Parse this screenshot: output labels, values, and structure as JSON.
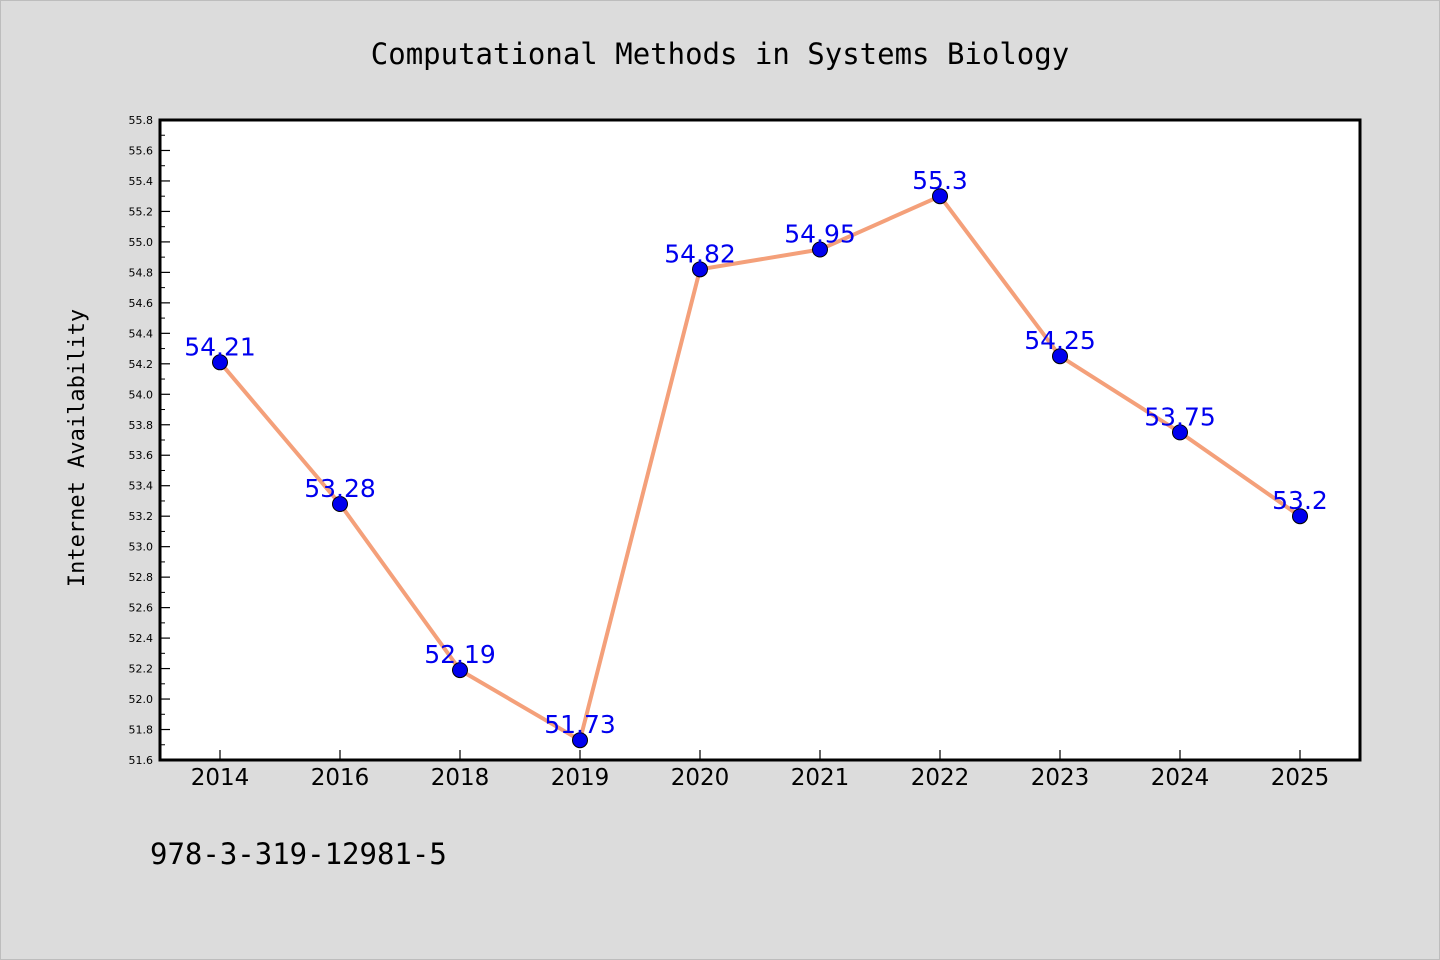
{
  "chart_data": {
    "type": "line",
    "title": "Computational Methods in Systems Biology",
    "xlabel": "",
    "ylabel": "Internet Availability",
    "categories": [
      "2014",
      "2016",
      "2018",
      "2019",
      "2020",
      "2021",
      "2022",
      "2023",
      "2024",
      "2025"
    ],
    "series": [
      {
        "values": [
          54.21,
          53.28,
          52.19,
          51.73,
          54.82,
          54.95,
          55.3,
          54.25,
          53.75,
          53.2
        ],
        "data_labels": [
          "54.21",
          "53.28",
          "52.19",
          "51.73",
          "54.82",
          "54.95",
          "55.3",
          "54.25",
          "53.75",
          "53.2"
        ]
      }
    ],
    "ylim": [
      51.6,
      55.8
    ],
    "yticks": [
      "51.6",
      "51.8",
      "52.0",
      "52.2",
      "52.4",
      "52.6",
      "52.8",
      "53.0",
      "53.2",
      "53.4",
      "53.6",
      "53.8",
      "54.0",
      "54.2",
      "54.4",
      "54.6",
      "54.8",
      "55.0",
      "55.2",
      "55.4",
      "55.6",
      "55.8"
    ],
    "grid": false,
    "colors": {
      "line": "#f4a07a",
      "marker": "#0000ee",
      "data_label": "#0000ee",
      "plot_background": "#ffffff",
      "page_background": "#dcdcdc"
    }
  },
  "footer": {
    "isbn": "978-3-319-12981-5"
  }
}
